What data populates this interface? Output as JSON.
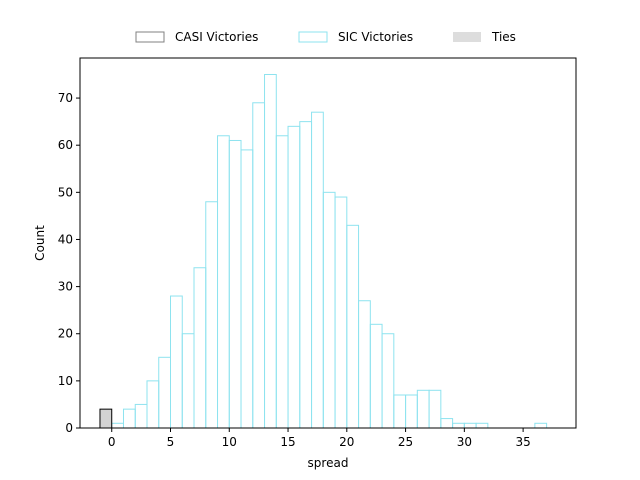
{
  "chart_data": {
    "type": "bar",
    "title": "",
    "xlabel": "spread",
    "ylabel": "Count",
    "xlim": [
      -2.7,
      39.5
    ],
    "ylim": [
      0,
      78.5
    ],
    "xticks": [
      0,
      5,
      10,
      15,
      20,
      25,
      30,
      35
    ],
    "yticks": [
      0,
      10,
      20,
      30,
      40,
      50,
      60,
      70
    ],
    "grid": false,
    "legend_position": "top-center, outside above plot",
    "bin_width": 1,
    "series": [
      {
        "name": "CASI Victories",
        "edge_color": "#808080",
        "fill_color": "none",
        "bins": []
      },
      {
        "name": "SIC Victories",
        "edge_color": "#8ee3ef",
        "fill_color": "none",
        "bins": [
          {
            "x": 0.5,
            "count": 1
          },
          {
            "x": 1.5,
            "count": 4
          },
          {
            "x": 2.5,
            "count": 5
          },
          {
            "x": 3.5,
            "count": 10
          },
          {
            "x": 4.5,
            "count": 15
          },
          {
            "x": 5.5,
            "count": 28
          },
          {
            "x": 6.5,
            "count": 20
          },
          {
            "x": 7.5,
            "count": 34
          },
          {
            "x": 8.5,
            "count": 48
          },
          {
            "x": 9.5,
            "count": 62
          },
          {
            "x": 10.5,
            "count": 61
          },
          {
            "x": 11.5,
            "count": 59
          },
          {
            "x": 12.5,
            "count": 69
          },
          {
            "x": 13.5,
            "count": 75
          },
          {
            "x": 14.5,
            "count": 62
          },
          {
            "x": 15.5,
            "count": 64
          },
          {
            "x": 16.5,
            "count": 65
          },
          {
            "x": 17.5,
            "count": 67
          },
          {
            "x": 18.5,
            "count": 50
          },
          {
            "x": 19.5,
            "count": 49
          },
          {
            "x": 20.5,
            "count": 43
          },
          {
            "x": 21.5,
            "count": 27
          },
          {
            "x": 22.5,
            "count": 22
          },
          {
            "x": 23.5,
            "count": 20
          },
          {
            "x": 24.5,
            "count": 7
          },
          {
            "x": 25.5,
            "count": 7
          },
          {
            "x": 26.5,
            "count": 8
          },
          {
            "x": 27.5,
            "count": 8
          },
          {
            "x": 28.5,
            "count": 2
          },
          {
            "x": 29.5,
            "count": 1
          },
          {
            "x": 30.5,
            "count": 1
          },
          {
            "x": 31.5,
            "count": 1
          },
          {
            "x": 36.5,
            "count": 1
          }
        ]
      },
      {
        "name": "Ties",
        "edge_color": "#000000",
        "fill_color": "#d3d3d3",
        "legend_color": "#dddddd",
        "bins": [
          {
            "x": -0.5,
            "count": 4
          }
        ]
      }
    ]
  }
}
